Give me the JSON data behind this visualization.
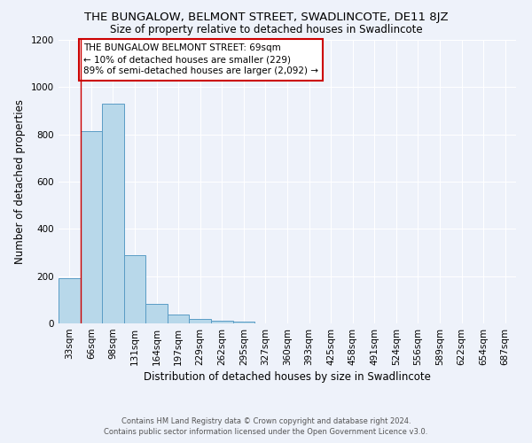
{
  "title": "THE BUNGALOW, BELMONT STREET, SWADLINCOTE, DE11 8JZ",
  "subtitle": "Size of property relative to detached houses in Swadlincote",
  "xlabel": "Distribution of detached houses by size in Swadlincote",
  "ylabel": "Number of detached properties",
  "footer_line1": "Contains HM Land Registry data © Crown copyright and database right 2024.",
  "footer_line2": "Contains public sector information licensed under the Open Government Licence v3.0.",
  "bar_labels": [
    "33sqm",
    "66sqm",
    "98sqm",
    "131sqm",
    "164sqm",
    "197sqm",
    "229sqm",
    "262sqm",
    "295sqm",
    "327sqm",
    "360sqm",
    "393sqm",
    "425sqm",
    "458sqm",
    "491sqm",
    "524sqm",
    "556sqm",
    "589sqm",
    "622sqm",
    "654sqm",
    "687sqm"
  ],
  "bar_values": [
    190,
    815,
    930,
    290,
    82,
    38,
    18,
    12,
    8,
    0,
    0,
    0,
    0,
    0,
    0,
    0,
    0,
    0,
    0,
    0,
    0
  ],
  "bar_color": "#b8d8ea",
  "bar_edge_color": "#5a9cc5",
  "bar_width": 1.0,
  "ylim": [
    0,
    1200
  ],
  "yticks": [
    0,
    200,
    400,
    600,
    800,
    1000,
    1200
  ],
  "property_line_x": 1.0,
  "property_line_color": "#cc0000",
  "annotation_text": "THE BUNGALOW BELMONT STREET: 69sqm\n← 10% of detached houses are smaller (229)\n89% of semi-detached houses are larger (2,092) →",
  "background_color": "#eef2fa",
  "grid_color": "#ffffff",
  "title_fontsize": 9.5,
  "subtitle_fontsize": 8.5,
  "xlabel_fontsize": 8.5,
  "ylabel_fontsize": 8.5,
  "tick_fontsize": 7.5,
  "annotation_fontsize": 7.5,
  "footer_fontsize": 6.0
}
